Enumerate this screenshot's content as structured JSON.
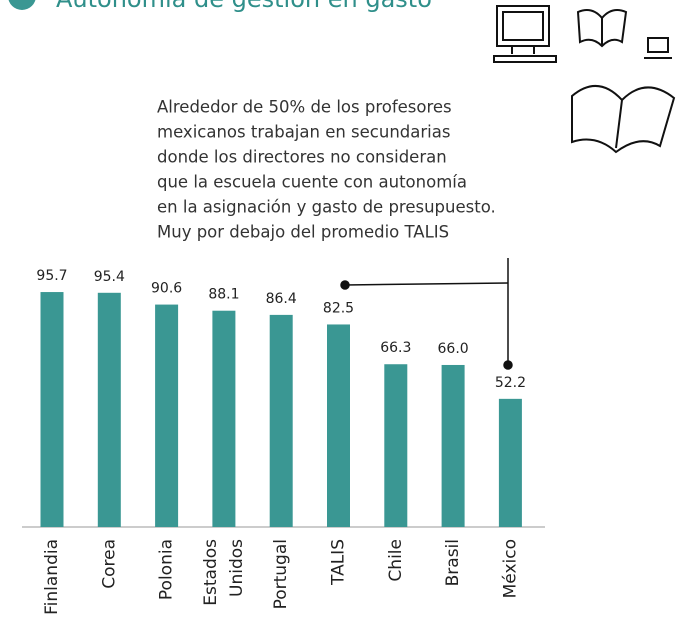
{
  "chart_data": {
    "type": "bar",
    "title": "Autonomía de gestión en gasto",
    "annotation": [
      "Alrededor  de 50% de los profesores",
      "mexicanos trabajan en secundarias",
      "donde los directores no consideran",
      "que la escuela cuente con autonomía",
      "en la asignación y gasto de presupuesto.",
      "Muy por debajo del promedio TALIS"
    ],
    "categories": [
      "Finlandia",
      "Corea",
      "Polonia",
      "Estados Unidos",
      "Portugal",
      "TALIS",
      "Chile",
      "Brasil",
      "México"
    ],
    "values": [
      95.7,
      95.4,
      90.6,
      88.1,
      86.4,
      82.5,
      66.3,
      66.0,
      52.2
    ],
    "value_labels": [
      "95.7",
      "95.4",
      "90.6",
      "88.1",
      "86.4",
      "82.5",
      "66.3",
      "66.0",
      "52.2"
    ],
    "color": "#3a9793"
  }
}
